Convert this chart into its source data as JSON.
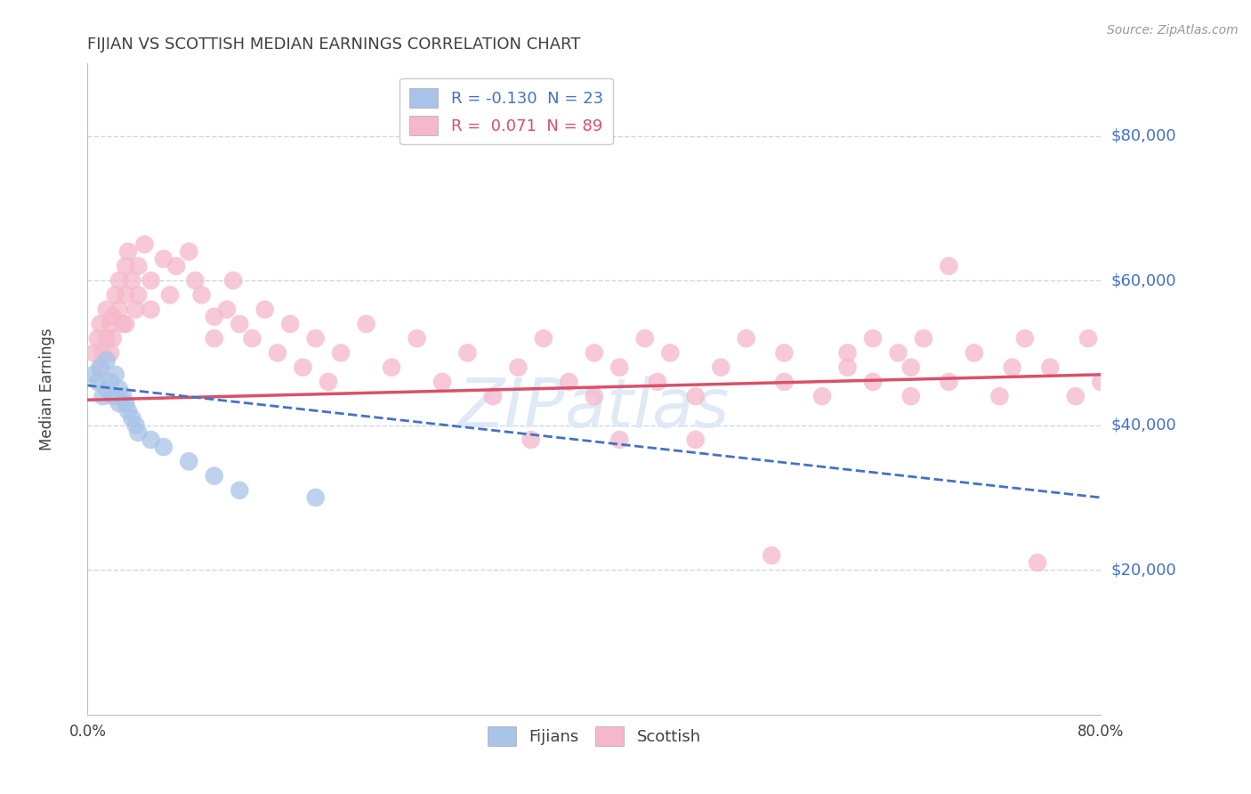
{
  "title": "FIJIAN VS SCOTTISH MEDIAN EARNINGS CORRELATION CHART",
  "source_text": "Source: ZipAtlas.com",
  "ylabel": "Median Earnings",
  "xlim": [
    0.0,
    0.8
  ],
  "ylim": [
    0,
    90000
  ],
  "yticks": [
    0,
    20000,
    40000,
    60000,
    80000
  ],
  "ytick_labels": [
    "",
    "$20,000",
    "$40,000",
    "$60,000",
    "$80,000"
  ],
  "xticks": [
    0.0,
    0.8
  ],
  "xtick_labels": [
    "0.0%",
    "80.0%"
  ],
  "fijian_color": "#a8c4e8",
  "scottish_color": "#f5b8cb",
  "fijian_line_color": "#4472c4",
  "scottish_line_color": "#d9506a",
  "R_fijian": -0.13,
  "N_fijian": 23,
  "R_scottish": 0.071,
  "N_scottish": 89,
  "title_color": "#404040",
  "axis_color": "#4472c4",
  "watermark": "ZIPatlas",
  "background_color": "#ffffff",
  "grid_color": "#c8d8ec",
  "fijian_x": [
    0.005,
    0.008,
    0.01,
    0.012,
    0.015,
    0.015,
    0.018,
    0.02,
    0.022,
    0.025,
    0.025,
    0.028,
    0.03,
    0.032,
    0.035,
    0.038,
    0.04,
    0.05,
    0.06,
    0.08,
    0.1,
    0.12,
    0.18
  ],
  "fijian_y": [
    47000,
    46000,
    48000,
    44000,
    49000,
    45000,
    46000,
    44000,
    47000,
    45000,
    43000,
    44000,
    43000,
    42000,
    41000,
    40000,
    39000,
    38000,
    37000,
    35000,
    33000,
    31000,
    30000
  ],
  "scottish_x": [
    0.005,
    0.008,
    0.01,
    0.01,
    0.012,
    0.015,
    0.015,
    0.018,
    0.018,
    0.02,
    0.02,
    0.022,
    0.025,
    0.025,
    0.028,
    0.03,
    0.03,
    0.03,
    0.032,
    0.035,
    0.038,
    0.04,
    0.04,
    0.045,
    0.05,
    0.05,
    0.06,
    0.065,
    0.07,
    0.08,
    0.085,
    0.09,
    0.1,
    0.1,
    0.11,
    0.115,
    0.12,
    0.13,
    0.14,
    0.15,
    0.16,
    0.17,
    0.18,
    0.19,
    0.2,
    0.22,
    0.24,
    0.26,
    0.28,
    0.3,
    0.32,
    0.34,
    0.36,
    0.38,
    0.4,
    0.4,
    0.42,
    0.44,
    0.45,
    0.46,
    0.48,
    0.5,
    0.52,
    0.55,
    0.55,
    0.58,
    0.6,
    0.62,
    0.62,
    0.64,
    0.65,
    0.65,
    0.66,
    0.68,
    0.7,
    0.72,
    0.73,
    0.74,
    0.75,
    0.76,
    0.78,
    0.79,
    0.8,
    0.35,
    0.42,
    0.48,
    0.54,
    0.6,
    0.68
  ],
  "scottish_y": [
    50000,
    52000,
    54000,
    48000,
    50000,
    52000,
    56000,
    54000,
    50000,
    55000,
    52000,
    58000,
    60000,
    56000,
    54000,
    62000,
    58000,
    54000,
    64000,
    60000,
    56000,
    62000,
    58000,
    65000,
    60000,
    56000,
    63000,
    58000,
    62000,
    64000,
    60000,
    58000,
    55000,
    52000,
    56000,
    60000,
    54000,
    52000,
    56000,
    50000,
    54000,
    48000,
    52000,
    46000,
    50000,
    54000,
    48000,
    52000,
    46000,
    50000,
    44000,
    48000,
    52000,
    46000,
    50000,
    44000,
    48000,
    52000,
    46000,
    50000,
    44000,
    48000,
    52000,
    46000,
    50000,
    44000,
    48000,
    52000,
    46000,
    50000,
    44000,
    48000,
    52000,
    46000,
    50000,
    44000,
    48000,
    52000,
    21000,
    48000,
    44000,
    52000,
    46000,
    38000,
    38000,
    38000,
    22000,
    50000,
    62000
  ],
  "trend_scottish_x0": 0.0,
  "trend_scottish_y0": 43500,
  "trend_scottish_x1": 0.8,
  "trend_scottish_y1": 47000,
  "trend_fijian_x0": 0.0,
  "trend_fijian_y0": 45500,
  "trend_fijian_x1": 0.8,
  "trend_fijian_y1": 30000
}
